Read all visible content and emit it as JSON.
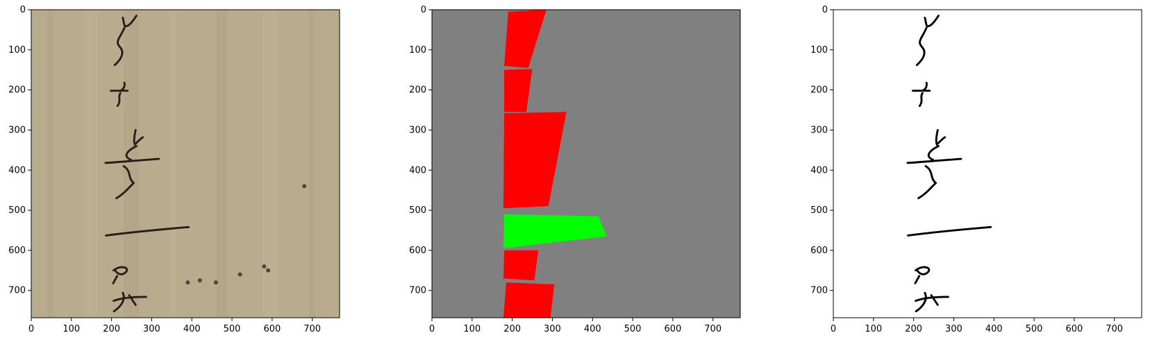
{
  "figure": {
    "panels": [
      {
        "id": "original",
        "title": "",
        "image": "parchment-manuscript-scan"
      },
      {
        "id": "mask",
        "title": "",
        "image": "segmentation-mask",
        "colors": {
          "background": "#808080",
          "region_a": "#ff0000",
          "region_b": "#00ff00"
        },
        "regions": [
          {
            "class": "red",
            "pts": [
              [
                190,
                5
              ],
              [
                285,
                0
              ],
              [
                240,
                145
              ],
              [
                180,
                140
              ]
            ]
          },
          {
            "class": "red",
            "pts": [
              [
                180,
                150
              ],
              [
                250,
                148
              ],
              [
                235,
                255
              ],
              [
                180,
                255
              ]
            ]
          },
          {
            "class": "red",
            "pts": [
              [
                180,
                258
              ],
              [
                335,
                255
              ],
              [
                290,
                490
              ],
              [
                178,
                495
              ]
            ]
          },
          {
            "class": "green",
            "pts": [
              [
                180,
                510
              ],
              [
                415,
                515
              ],
              [
                435,
                565
              ],
              [
                178,
                595
              ]
            ]
          },
          {
            "class": "red",
            "pts": [
              [
                180,
                600
              ],
              [
                265,
                600
              ],
              [
                255,
                675
              ],
              [
                178,
                670
              ]
            ]
          },
          {
            "class": "red",
            "pts": [
              [
                185,
                680
              ],
              [
                305,
                685
              ],
              [
                295,
                768
              ],
              [
                178,
                768
              ]
            ]
          }
        ]
      },
      {
        "id": "binarized",
        "title": "",
        "image": "binarized-ink"
      }
    ]
  },
  "axes": {
    "xticks": [
      "0",
      "100",
      "200",
      "300",
      "400",
      "500",
      "600",
      "700"
    ],
    "yticks": [
      "0",
      "100",
      "200",
      "300",
      "400",
      "500",
      "600",
      "700"
    ],
    "xlim": [
      0,
      768
    ],
    "ylim": [
      768,
      0
    ]
  }
}
